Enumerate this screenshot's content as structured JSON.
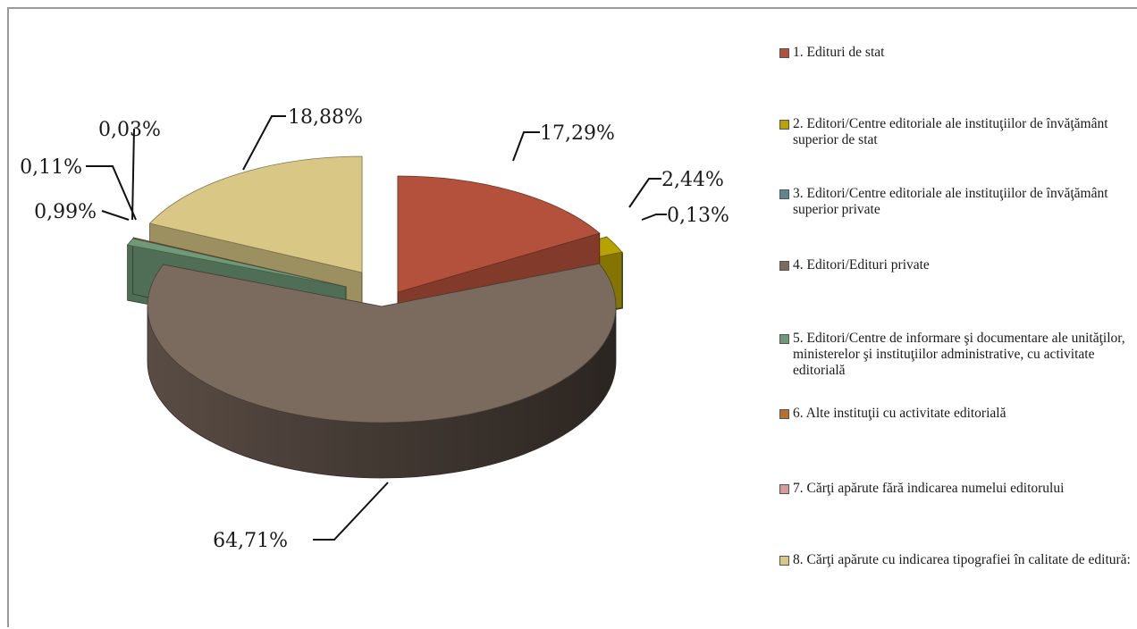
{
  "chart_data": {
    "type": "pie",
    "title": "",
    "slices": [
      {
        "label": "1. Edituri de stat",
        "value": 17.29,
        "display": "17,29%",
        "color": "#b4513c",
        "exploded": true
      },
      {
        "label": "2. Editori/Centre editoriale  ale instituţiilor de învăţământ superior de stat",
        "value": 2.44,
        "display": "2,44%",
        "color": "#b8a200",
        "exploded": true
      },
      {
        "label": "3. Editori/Centre editoriale ale instituţiilor de învăţământ superior private",
        "value": 0.13,
        "display": "0,13%",
        "color": "#5a8790",
        "exploded": true
      },
      {
        "label": "4. Editori/Edituri private",
        "value": 64.71,
        "display": "64,71%",
        "color": "#7b6a5e",
        "exploded": false
      },
      {
        "label": "5. Editori/Centre de informare şi documentare ale unităţilor, ministerelor şi instituţiilor administrative, cu activitate editorială",
        "value": 0.99,
        "display": "0,99%",
        "color": "#6f9978",
        "exploded": true
      },
      {
        "label": "6. Alte instituţii cu activitate editorială",
        "value": 0.11,
        "display": "0,11%",
        "color": "#b8702e",
        "exploded": true
      },
      {
        "label": "7. Cărţi apărute fără indicarea numelui editorului",
        "value": 0.03,
        "display": "0,03%",
        "color": "#d99a9a",
        "exploded": true
      },
      {
        "label": "8. Cărţi apărute cu indicarea tipografiei în calitate de editură:",
        "value": 18.88,
        "display": "18,88%",
        "color": "#d8c785",
        "exploded": true
      }
    ],
    "legend_position": "right"
  }
}
